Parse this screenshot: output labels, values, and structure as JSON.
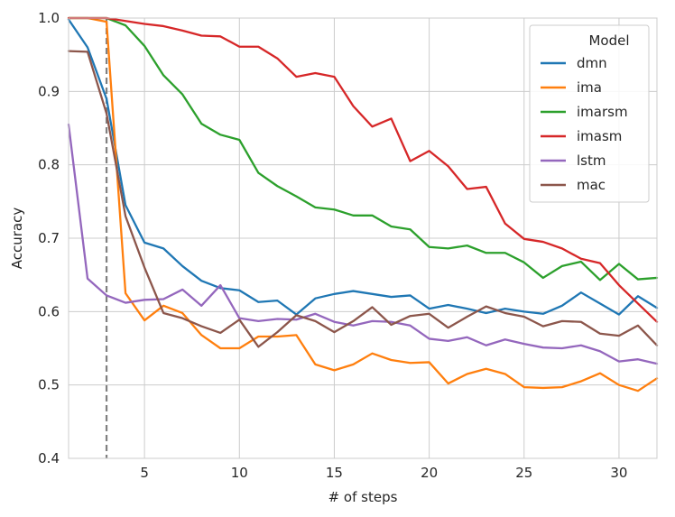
{
  "chart_data": {
    "type": "line",
    "title": "",
    "xlabel": "# of steps",
    "ylabel": "Accuracy",
    "xlim": [
      1,
      32
    ],
    "ylim": [
      0.4,
      1.0
    ],
    "xticks": [
      5,
      10,
      15,
      20,
      25,
      30
    ],
    "yticks": [
      0.4,
      0.5,
      0.6,
      0.7,
      0.8,
      0.9,
      1.0
    ],
    "grid": true,
    "legend_title": "Model",
    "legend_position": "top-right",
    "vertical_marker": {
      "x": 3,
      "style": "dashed",
      "color": "#808080"
    },
    "x": [
      1,
      2,
      3,
      4,
      5,
      6,
      7,
      8,
      9,
      10,
      11,
      12,
      13,
      14,
      15,
      16,
      17,
      18,
      19,
      20,
      21,
      22,
      23,
      24,
      25,
      26,
      27,
      28,
      29,
      30,
      31,
      32
    ],
    "series": [
      {
        "name": "dmn",
        "color": "#1f77b4",
        "values": [
          0.998,
          0.96,
          0.89,
          0.745,
          0.694,
          0.686,
          0.662,
          0.642,
          0.632,
          0.629,
          0.613,
          0.615,
          0.596,
          0.618,
          0.624,
          0.628,
          0.624,
          0.62,
          0.622,
          0.604,
          0.609,
          0.604,
          0.598,
          0.604,
          0.6,
          0.597,
          0.608,
          0.626,
          0.611,
          0.596,
          0.621,
          0.605
        ]
      },
      {
        "name": "ima",
        "color": "#ff7f0e",
        "values": [
          1.0,
          1.0,
          0.995,
          0.625,
          0.588,
          0.608,
          0.598,
          0.568,
          0.55,
          0.55,
          0.566,
          0.566,
          0.568,
          0.528,
          0.52,
          0.528,
          0.543,
          0.534,
          0.53,
          0.531,
          0.502,
          0.515,
          0.522,
          0.515,
          0.497,
          0.496,
          0.497,
          0.505,
          0.516,
          0.5,
          0.492,
          0.509
        ]
      },
      {
        "name": "imarsm",
        "color": "#2ca02c",
        "values": [
          1.0,
          1.0,
          1.0,
          0.99,
          0.962,
          0.922,
          0.896,
          0.856,
          0.841,
          0.834,
          0.789,
          0.771,
          0.757,
          0.742,
          0.739,
          0.731,
          0.731,
          0.716,
          0.712,
          0.688,
          0.686,
          0.69,
          0.68,
          0.68,
          0.667,
          0.646,
          0.662,
          0.668,
          0.643,
          0.665,
          0.644,
          0.646
        ]
      },
      {
        "name": "imasm",
        "color": "#d62728",
        "values": [
          1.0,
          1.0,
          1.0,
          0.996,
          0.992,
          0.989,
          0.983,
          0.976,
          0.975,
          0.961,
          0.961,
          0.945,
          0.92,
          0.925,
          0.92,
          0.88,
          0.852,
          0.863,
          0.805,
          0.819,
          0.798,
          0.767,
          0.77,
          0.72,
          0.699,
          0.695,
          0.686,
          0.672,
          0.666,
          0.636,
          0.611,
          0.586
        ]
      },
      {
        "name": "lstm",
        "color": "#9467bd",
        "values": [
          0.855,
          0.645,
          0.622,
          0.612,
          0.616,
          0.617,
          0.63,
          0.608,
          0.636,
          0.591,
          0.587,
          0.59,
          0.589,
          0.597,
          0.586,
          0.581,
          0.587,
          0.586,
          0.581,
          0.563,
          0.56,
          0.565,
          0.554,
          0.562,
          0.556,
          0.551,
          0.55,
          0.554,
          0.546,
          0.532,
          0.535,
          0.529
        ]
      },
      {
        "name": "mac",
        "color": "#8c564b",
        "values": [
          0.955,
          0.954,
          0.87,
          0.73,
          0.66,
          0.598,
          0.591,
          0.58,
          0.571,
          0.589,
          0.552,
          0.572,
          0.595,
          0.587,
          0.572,
          0.587,
          0.606,
          0.582,
          0.594,
          0.597,
          0.578,
          0.593,
          0.607,
          0.598,
          0.593,
          0.58,
          0.587,
          0.586,
          0.57,
          0.567,
          0.581,
          0.554
        ]
      }
    ]
  }
}
